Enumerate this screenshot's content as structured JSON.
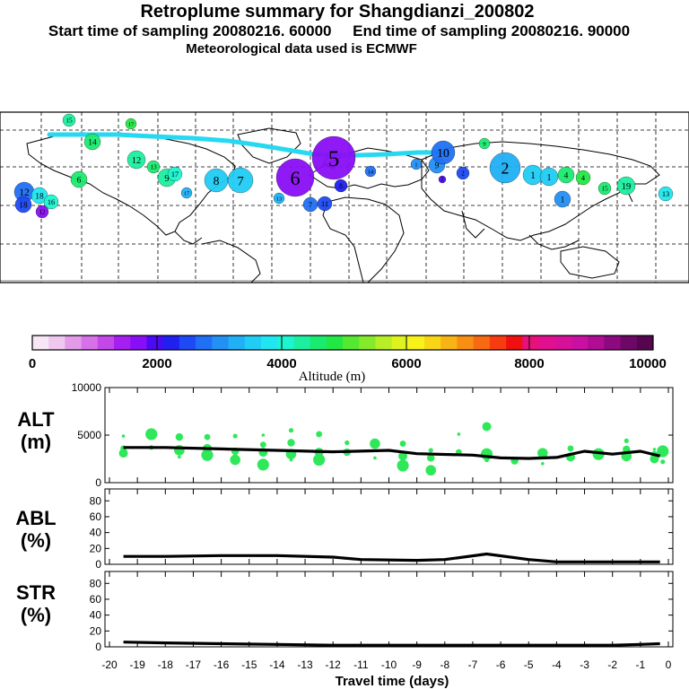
{
  "header": {
    "title": "Retroplume summary for Shangdianzi_200802",
    "line2": "Start time of sampling 20080216. 60000     End time of sampling 20080216. 90000",
    "line3": "Meteorological data used is ECMWF"
  },
  "colorbar": {
    "label": "Altitude (m)",
    "ticks": [
      "0",
      "2000",
      "4000",
      "6000",
      "8000",
      "10000"
    ],
    "colors": [
      "#f6e6f6",
      "#efc7ef",
      "#e39be8",
      "#d671e8",
      "#c447e8",
      "#a51ff0",
      "#8a0ef5",
      "#4b0af5",
      "#2020f0",
      "#1e4af5",
      "#2070f5",
      "#2290f5",
      "#1fb0f5",
      "#20cdf5",
      "#1fe6f0",
      "#1df5d0",
      "#1cf0a0",
      "#1aeb70",
      "#22e845",
      "#55e830",
      "#85ea2a",
      "#b8ee25",
      "#dff21f",
      "#f8f21a",
      "#f8d517",
      "#f8b314",
      "#f88f12",
      "#f86a12",
      "#f83c12",
      "#f01010",
      "#e8107a",
      "#e0108e",
      "#d81099",
      "#c910a2",
      "#b00c94",
      "#8c0a80",
      "#6e0866",
      "#55064f"
    ]
  },
  "map": {
    "annotations": [
      "15",
      "17",
      "12",
      "18",
      "16",
      "10",
      "14",
      "13",
      "11",
      "9",
      "8",
      "7",
      "6",
      "5",
      "4",
      "3",
      "2",
      "1",
      "19"
    ]
  },
  "panels": {
    "alt": {
      "title": "ALT",
      "unit": "(m)"
    },
    "abl": {
      "title": "ABL",
      "unit": "(%)"
    },
    "str": {
      "title": "STR",
      "unit": "(%)"
    }
  },
  "xlabel": "Travel time (days)",
  "chart_data": [
    {
      "type": "line",
      "title": "ALT",
      "ylabel": "(m)",
      "ylim": [
        0,
        10000
      ],
      "yticks": [
        "10000",
        "5000",
        "0"
      ],
      "xlim": [
        -20,
        0
      ],
      "x": [
        -19.5,
        -18,
        -16,
        -14,
        -12,
        -10,
        -9,
        -7,
        -6,
        -5,
        -4,
        -3,
        -2,
        -1,
        -0.3
      ],
      "values": [
        3700,
        3700,
        3550,
        3400,
        3250,
        3400,
        3050,
        2900,
        2600,
        2550,
        2650,
        3300,
        3000,
        3300,
        2800
      ],
      "scatter": {
        "color": "#2ee85a",
        "points": [
          [
            -19.5,
            4900
          ],
          [
            -19.5,
            3600
          ],
          [
            -19.5,
            3100
          ],
          [
            -18.5,
            5100
          ],
          [
            -18.5,
            3700
          ],
          [
            -17.5,
            4800
          ],
          [
            -17.5,
            3400
          ],
          [
            -17.5,
            2700
          ],
          [
            -16.5,
            4800
          ],
          [
            -16.5,
            3600
          ],
          [
            -16.5,
            2900
          ],
          [
            -15.5,
            4900
          ],
          [
            -15.5,
            3300
          ],
          [
            -15.5,
            2400
          ],
          [
            -14.5,
            5000
          ],
          [
            -14.5,
            4000
          ],
          [
            -14.5,
            3200
          ],
          [
            -14.5,
            1900
          ],
          [
            -13.5,
            5500
          ],
          [
            -13.5,
            4200
          ],
          [
            -13.5,
            3000
          ],
          [
            -13.5,
            2400
          ],
          [
            -12.5,
            5100
          ],
          [
            -12.5,
            3200
          ],
          [
            -12.5,
            2400
          ],
          [
            -11.5,
            4200
          ],
          [
            -11.5,
            3200
          ],
          [
            -10.5,
            4100
          ],
          [
            -10.5,
            2600
          ],
          [
            -9.5,
            4100
          ],
          [
            -9.5,
            2800
          ],
          [
            -9.5,
            1800
          ],
          [
            -8.5,
            3400
          ],
          [
            -8.5,
            2600
          ],
          [
            -8.5,
            1300
          ],
          [
            -7.5,
            5100
          ],
          [
            -7.5,
            3200
          ],
          [
            -6.5,
            5900
          ],
          [
            -6.5,
            3000
          ],
          [
            -6.5,
            2400
          ],
          [
            -5.5,
            2300
          ],
          [
            -4.5,
            3100
          ],
          [
            -4.5,
            2000
          ],
          [
            -3.5,
            3600
          ],
          [
            -3.5,
            2700
          ],
          [
            -2.5,
            3000
          ],
          [
            -1.5,
            4400
          ],
          [
            -1.5,
            3500
          ],
          [
            -1.5,
            2800
          ],
          [
            -0.5,
            3500
          ],
          [
            -0.5,
            3000
          ],
          [
            -0.5,
            2500
          ],
          [
            -0.2,
            3300
          ],
          [
            -0.2,
            2200
          ]
        ]
      }
    },
    {
      "type": "line",
      "title": "ABL",
      "ylabel": "(%)",
      "ylim": [
        0,
        95
      ],
      "yticks": [
        "80",
        "60",
        "40",
        "20",
        "0"
      ],
      "xlim": [
        -20,
        0
      ],
      "x": [
        -19.5,
        -18,
        -16,
        -14,
        -12,
        -11,
        -9,
        -8,
        -6.5,
        -5,
        -4,
        -3,
        -2,
        -1,
        -0.3
      ],
      "values": [
        10,
        10,
        11,
        11,
        9,
        6,
        5,
        6,
        13,
        6,
        3,
        3,
        3,
        3,
        3
      ]
    },
    {
      "type": "line",
      "title": "STR",
      "ylabel": "(%)",
      "ylim": [
        0,
        95
      ],
      "yticks": [
        "80",
        "60",
        "40",
        "20",
        "0"
      ],
      "xlim": [
        -20,
        0
      ],
      "x": [
        -19.5,
        -18,
        -16,
        -14,
        -12,
        -10,
        -8,
        -6,
        -4,
        -2,
        -1,
        -0.3
      ],
      "values": [
        6,
        5,
        4,
        3,
        2,
        2,
        2,
        2,
        2,
        2,
        3,
        4
      ],
      "xticks": [
        "-20",
        "-19",
        "-18",
        "-17",
        "-16",
        "-15",
        "-14",
        "-13",
        "-12",
        "-11",
        "-10",
        "-9",
        "-8",
        "-7",
        "-6",
        "-5",
        "-4",
        "-3",
        "-2",
        "-1",
        "0"
      ],
      "xlabel": "Travel time (days)"
    }
  ]
}
